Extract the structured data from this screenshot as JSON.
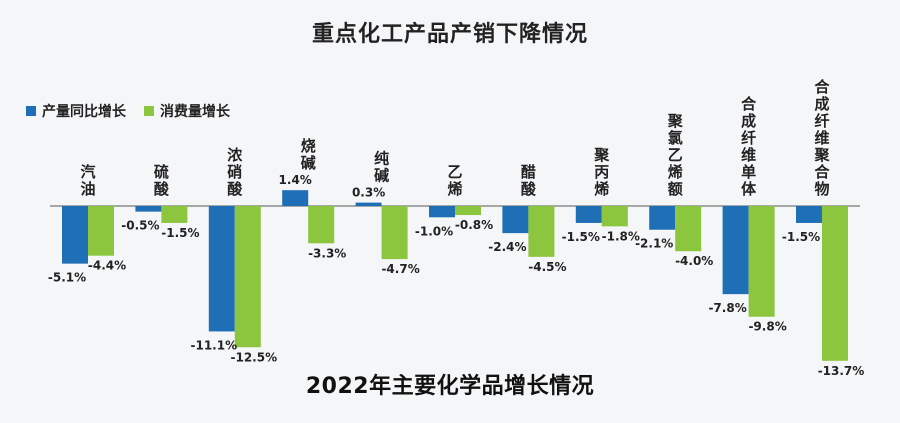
{
  "title": "重点化工产品产销下降情况",
  "subtitle": "2022年主要化学品增长情况",
  "colors": {
    "production": "#1f6fb6",
    "consumption": "#8cc63e",
    "axis": "#555555",
    "background": "#f5f6f8"
  },
  "legend": [
    {
      "label": "产量同比增长",
      "color": "#1f6fb6"
    },
    {
      "label": "消费量增长",
      "color": "#8cc63e"
    }
  ],
  "chart_data": {
    "type": "bar",
    "title": "重点化工产品产销下降情况",
    "subtitle": "2022年主要化学品增长情况",
    "categories": [
      "汽油",
      "硫酸",
      "浓硝酸",
      "烧碱",
      "纯碱",
      "乙烯",
      "醋酸",
      "聚丙烯",
      "聚氯乙烯额",
      "合成纤维单体",
      "合成纤维聚合物"
    ],
    "series": [
      {
        "name": "产量同比增长",
        "values": [
          -5.1,
          -0.5,
          -11.1,
          1.4,
          0.3,
          -1.0,
          -2.4,
          -1.5,
          -2.1,
          -7.8,
          -1.5
        ]
      },
      {
        "name": "消费量增长",
        "values": [
          -4.4,
          -1.5,
          -12.5,
          -3.3,
          -4.7,
          -0.8,
          -4.5,
          -1.8,
          -4.0,
          -9.8,
          -13.7
        ]
      }
    ],
    "data_labels": {
      "产量同比增长": [
        "-5.1%",
        "-0.5%",
        "-11.1%",
        "1.4%",
        "0.3%",
        "-1.0%",
        "-2.4%",
        "-1.5%",
        "-2.1%",
        "-7.8%",
        "-1.5%"
      ],
      "消费量增长": [
        "-4.4%",
        "-1.5%",
        "-12.5%",
        "-3.3%",
        "-4.7%",
        "-0.8%",
        "-4.5%",
        "-1.8%",
        "-4.0%",
        "-9.8%",
        "-13.7%"
      ]
    },
    "ylim": [
      -13.7,
      1.4
    ],
    "grid": false,
    "legend_position": "top-left",
    "xlabel": "",
    "ylabel": ""
  }
}
